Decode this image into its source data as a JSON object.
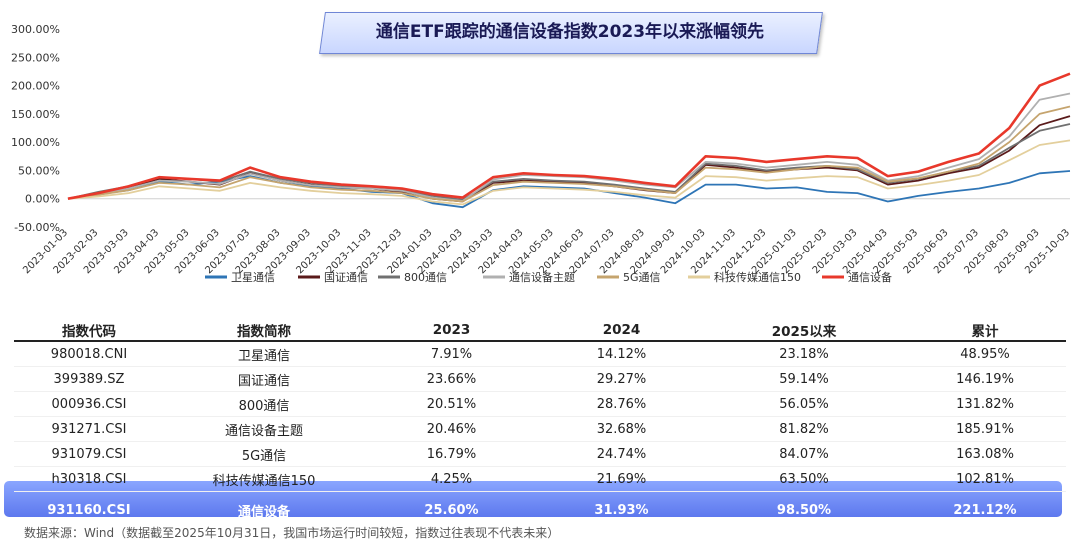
{
  "title": "通信ETF跟踪的通信设备指数2023年以来涨幅领先",
  "chart_data": {
    "type": "line",
    "title": "通信ETF跟踪的通信设备指数2023年以来涨幅领先",
    "y_ticks": [
      "300.00%",
      "250.00%",
      "200.00%",
      "150.00%",
      "100.00%",
      "50.00%",
      "0.00%",
      "-50.00%"
    ],
    "ylim": [
      -50,
      300
    ],
    "x_ticks": [
      "2023-01-03",
      "2023-02-03",
      "2023-03-03",
      "2023-04-03",
      "2023-05-03",
      "2023-06-03",
      "2023-07-03",
      "2023-08-03",
      "2023-09-03",
      "2023-10-03",
      "2023-11-03",
      "2023-12-03",
      "2024-01-03",
      "2024-02-03",
      "2024-03-03",
      "2024-04-03",
      "2024-05-03",
      "2024-06-03",
      "2024-07-03",
      "2024-08-03",
      "2024-09-03",
      "2024-10-03",
      "2024-11-03",
      "2024-12-03",
      "2025-01-03",
      "2025-02-03",
      "2025-03-03",
      "2025-04-03",
      "2025-05-03",
      "2025-06-03",
      "2025-07-03",
      "2025-08-03",
      "2025-09-03",
      "2025-10-03"
    ],
    "legend_position": "bottom",
    "series": [
      {
        "name": "卫星通信",
        "color": "#2e75b6",
        "values": [
          0,
          8,
          15,
          30,
          25,
          30,
          40,
          28,
          22,
          18,
          12,
          10,
          -8,
          -15,
          15,
          22,
          20,
          18,
          10,
          2,
          -8,
          25,
          25,
          18,
          20,
          12,
          10,
          -5,
          5,
          12,
          18,
          28,
          45,
          49
        ]
      },
      {
        "name": "国证通信",
        "color": "#5a1a1a",
        "values": [
          0,
          10,
          20,
          35,
          30,
          25,
          45,
          32,
          25,
          20,
          18,
          12,
          0,
          -5,
          28,
          32,
          30,
          28,
          22,
          15,
          10,
          60,
          55,
          48,
          52,
          55,
          50,
          25,
          32,
          45,
          55,
          85,
          130,
          146
        ]
      },
      {
        "name": "800通信",
        "color": "#707070",
        "values": [
          0,
          12,
          22,
          38,
          35,
          30,
          48,
          35,
          28,
          22,
          20,
          15,
          5,
          -2,
          30,
          35,
          32,
          30,
          25,
          18,
          12,
          62,
          58,
          50,
          55,
          58,
          52,
          28,
          35,
          48,
          58,
          90,
          120,
          132
        ]
      },
      {
        "name": "通信设备主题",
        "color": "#b0b0b0",
        "values": [
          0,
          9,
          18,
          32,
          30,
          26,
          44,
          32,
          24,
          20,
          18,
          14,
          2,
          -4,
          34,
          42,
          40,
          38,
          32,
          25,
          20,
          65,
          62,
          55,
          60,
          65,
          60,
          32,
          40,
          55,
          70,
          110,
          175,
          186
        ]
      },
      {
        "name": "5G通信",
        "color": "#c5a46e",
        "values": [
          0,
          7,
          15,
          28,
          25,
          20,
          38,
          28,
          20,
          16,
          14,
          10,
          0,
          -5,
          24,
          30,
          28,
          26,
          22,
          16,
          10,
          55,
          52,
          46,
          52,
          58,
          55,
          30,
          36,
          48,
          62,
          100,
          150,
          163
        ]
      },
      {
        "name": "科技传媒通信150",
        "color": "#e3cf9c",
        "values": [
          0,
          4,
          10,
          22,
          18,
          14,
          28,
          20,
          14,
          10,
          8,
          5,
          -5,
          -10,
          14,
          20,
          18,
          16,
          12,
          6,
          2,
          40,
          38,
          32,
          36,
          40,
          38,
          18,
          24,
          32,
          42,
          68,
          95,
          103
        ]
      },
      {
        "name": "通信设备",
        "color": "#e8382b",
        "values": [
          0,
          10,
          22,
          38,
          35,
          32,
          55,
          38,
          30,
          25,
          22,
          18,
          8,
          2,
          38,
          45,
          42,
          40,
          35,
          28,
          22,
          75,
          72,
          65,
          70,
          75,
          72,
          40,
          48,
          65,
          80,
          125,
          200,
          221
        ]
      }
    ]
  },
  "table": {
    "headers": [
      "指数代码",
      "指数简称",
      "2023",
      "2024",
      "2025以来",
      "累计"
    ],
    "rows": [
      [
        "980018.CNI",
        "卫星通信",
        "7.91%",
        "14.12%",
        "23.18%",
        "48.95%"
      ],
      [
        "399389.SZ",
        "国证通信",
        "23.66%",
        "29.27%",
        "59.14%",
        "146.19%"
      ],
      [
        "000936.CSI",
        "800通信",
        "20.51%",
        "28.76%",
        "56.05%",
        "131.82%"
      ],
      [
        "931271.CSI",
        "通信设备主题",
        "20.46%",
        "32.68%",
        "81.82%",
        "185.91%"
      ],
      [
        "931079.CSI",
        "5G通信",
        "16.79%",
        "24.74%",
        "84.07%",
        "163.08%"
      ],
      [
        "h30318.CSI",
        "科技传媒通信150",
        "4.25%",
        "21.69%",
        "63.50%",
        "102.81%"
      ],
      [
        "931160.CSI",
        "通信设备",
        "25.60%",
        "31.93%",
        "98.50%",
        "221.12%"
      ]
    ]
  },
  "source": "数据来源：Wind（数据截至2025年10月31日，我国市场运行时间较短，指数过往表现不代表未来）"
}
